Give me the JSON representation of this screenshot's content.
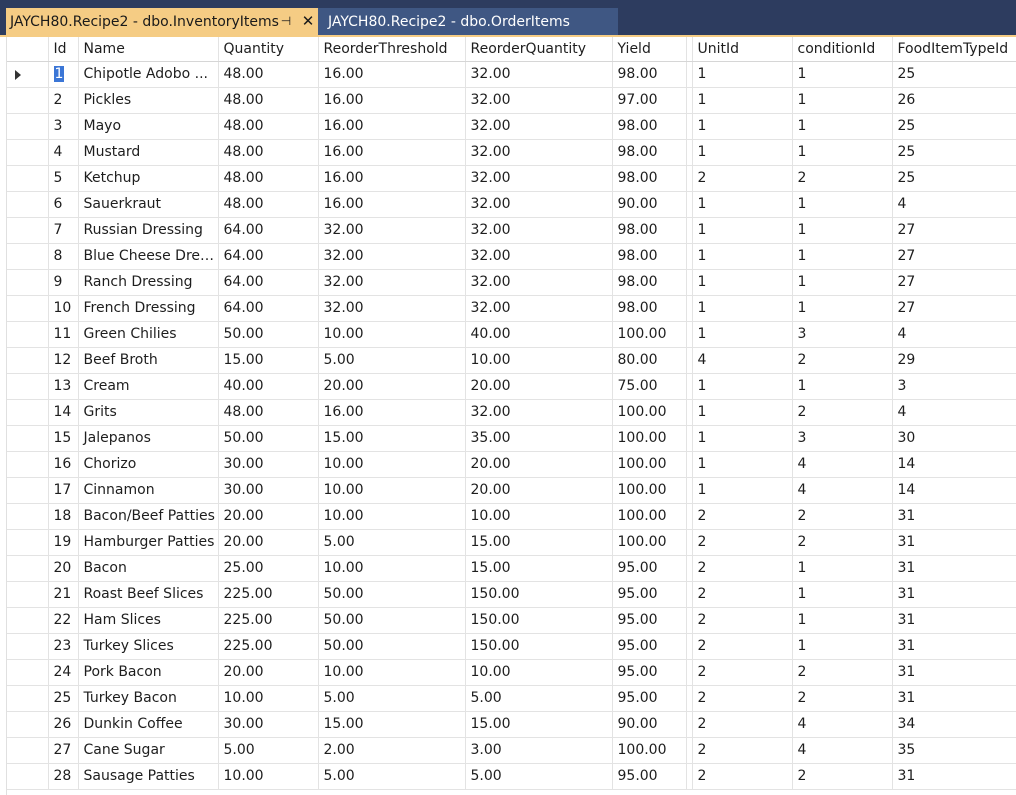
{
  "tabs": [
    {
      "label": "JAYCH80.Recipe2 - dbo.InventoryItems",
      "active": true
    },
    {
      "label": "JAYCH80.Recipe2 - dbo.OrderItems",
      "active": false
    }
  ],
  "colors": {
    "tabstrip_bg": "#2d3c5f",
    "active_tab": "#f5cc84",
    "inactive_tab": "#3f5783",
    "selection": "#3b76d6"
  },
  "grid": {
    "columns": [
      "Id",
      "Name",
      "Quantity",
      "ReorderThreshold",
      "ReorderQuantity",
      "Yield",
      "UnitId",
      "conditionId",
      "FoodItemTypeId"
    ],
    "rows": [
      [
        "1",
        "Chipotle Adobo ...",
        "48.00",
        "16.00",
        "32.00",
        "98.00",
        "1",
        "1",
        "25"
      ],
      [
        "2",
        "Pickles",
        "48.00",
        "16.00",
        "32.00",
        "97.00",
        "1",
        "1",
        "26"
      ],
      [
        "3",
        "Mayo",
        "48.00",
        "16.00",
        "32.00",
        "98.00",
        "1",
        "1",
        "25"
      ],
      [
        "4",
        "Mustard",
        "48.00",
        "16.00",
        "32.00",
        "98.00",
        "1",
        "1",
        "25"
      ],
      [
        "5",
        "Ketchup",
        "48.00",
        "16.00",
        "32.00",
        "98.00",
        "2",
        "2",
        "25"
      ],
      [
        "6",
        "Sauerkraut",
        "48.00",
        "16.00",
        "32.00",
        "90.00",
        "1",
        "1",
        "4"
      ],
      [
        "7",
        "Russian Dressing",
        "64.00",
        "32.00",
        "32.00",
        "98.00",
        "1",
        "1",
        "27"
      ],
      [
        "8",
        "Blue Cheese Dress...",
        "64.00",
        "32.00",
        "32.00",
        "98.00",
        "1",
        "1",
        "27"
      ],
      [
        "9",
        "Ranch Dressing",
        "64.00",
        "32.00",
        "32.00",
        "98.00",
        "1",
        "1",
        "27"
      ],
      [
        "10",
        "French Dressing",
        "64.00",
        "32.00",
        "32.00",
        "98.00",
        "1",
        "1",
        "27"
      ],
      [
        "11",
        "Green Chilies",
        "50.00",
        "10.00",
        "40.00",
        "100.00",
        "1",
        "3",
        "4"
      ],
      [
        "12",
        "Beef Broth",
        "15.00",
        "5.00",
        "10.00",
        "80.00",
        "4",
        "2",
        "29"
      ],
      [
        "13",
        "Cream",
        "40.00",
        "20.00",
        "20.00",
        "75.00",
        "1",
        "1",
        "3"
      ],
      [
        "14",
        "Grits",
        "48.00",
        "16.00",
        "32.00",
        "100.00",
        "1",
        "2",
        "4"
      ],
      [
        "15",
        "Jalepanos",
        "50.00",
        "15.00",
        "35.00",
        "100.00",
        "1",
        "3",
        "30"
      ],
      [
        "16",
        "Chorizo",
        "30.00",
        "10.00",
        "20.00",
        "100.00",
        "1",
        "4",
        "14"
      ],
      [
        "17",
        "Cinnamon",
        "30.00",
        "10.00",
        "20.00",
        "100.00",
        "1",
        "4",
        "14"
      ],
      [
        "18",
        "Bacon/Beef Patties",
        "20.00",
        "10.00",
        "10.00",
        "100.00",
        "2",
        "2",
        "31"
      ],
      [
        "19",
        "Hamburger Patties",
        "20.00",
        "5.00",
        "15.00",
        "100.00",
        "2",
        "2",
        "31"
      ],
      [
        "20",
        "Bacon",
        "25.00",
        "10.00",
        "15.00",
        "95.00",
        "2",
        "1",
        "31"
      ],
      [
        "21",
        "Roast Beef Slices",
        "225.00",
        "50.00",
        "150.00",
        "95.00",
        "2",
        "1",
        "31"
      ],
      [
        "22",
        "Ham Slices",
        "225.00",
        "50.00",
        "150.00",
        "95.00",
        "2",
        "1",
        "31"
      ],
      [
        "23",
        "Turkey Slices",
        "225.00",
        "50.00",
        "150.00",
        "95.00",
        "2",
        "1",
        "31"
      ],
      [
        "24",
        "Pork Bacon",
        "20.00",
        "10.00",
        "10.00",
        "95.00",
        "2",
        "2",
        "31"
      ],
      [
        "25",
        "Turkey Bacon",
        "10.00",
        "5.00",
        "5.00",
        "95.00",
        "2",
        "2",
        "31"
      ],
      [
        "26",
        "Dunkin Coffee",
        "30.00",
        "15.00",
        "15.00",
        "90.00",
        "2",
        "4",
        "34"
      ],
      [
        "27",
        "Cane Sugar",
        "5.00",
        "2.00",
        "3.00",
        "100.00",
        "2",
        "4",
        "35"
      ],
      [
        "28",
        "Sausage Patties",
        "10.00",
        "5.00",
        "5.00",
        "95.00",
        "2",
        "2",
        "31"
      ]
    ]
  }
}
